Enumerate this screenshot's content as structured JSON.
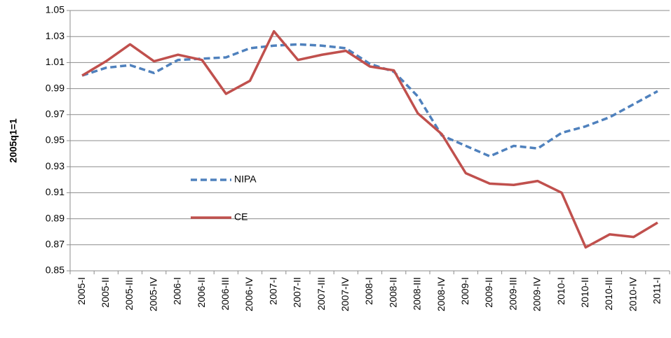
{
  "chart_data": {
    "type": "line",
    "y_label": "2005q1=1",
    "categories": [
      "2005-I",
      "2005-II",
      "2005-III",
      "2005-IV",
      "2006-I",
      "2006-II",
      "2006-III",
      "2006-IV",
      "2007-I",
      "2007-II",
      "2007-III",
      "2007-IV",
      "2008-I",
      "2008-II",
      "2008-III",
      "2008-IV",
      "2009-I",
      "2009-II",
      "2009-III",
      "2009-IV",
      "2010-I",
      "2010-II",
      "2010-III",
      "2010-IV",
      "2011-I"
    ],
    "series": [
      {
        "name": "NIPA",
        "color": "#4f81bd",
        "dash": "dashed",
        "values": [
          1.0,
          1.006,
          1.008,
          1.002,
          1.012,
          1.013,
          1.014,
          1.021,
          1.023,
          1.024,
          1.023,
          1.021,
          1.009,
          1.003,
          0.984,
          0.954,
          0.946,
          0.938,
          0.946,
          0.944,
          0.956,
          0.961,
          0.968,
          0.978,
          0.988
        ]
      },
      {
        "name": "CE",
        "color": "#c0504d",
        "dash": "solid",
        "values": [
          1.0,
          1.011,
          1.024,
          1.011,
          1.016,
          1.012,
          0.986,
          0.996,
          1.034,
          1.012,
          1.016,
          1.019,
          1.007,
          1.004,
          0.971,
          0.955,
          0.925,
          0.917,
          0.916,
          0.919,
          0.91,
          0.868,
          0.878,
          0.876,
          0.887
        ]
      }
    ],
    "ylim": [
      0.85,
      1.05
    ],
    "yticks": [
      0.85,
      0.87,
      0.89,
      0.91,
      0.93,
      0.95,
      0.97,
      0.99,
      1.01,
      1.03,
      1.05
    ],
    "grid": true,
    "legend": "center-left"
  }
}
